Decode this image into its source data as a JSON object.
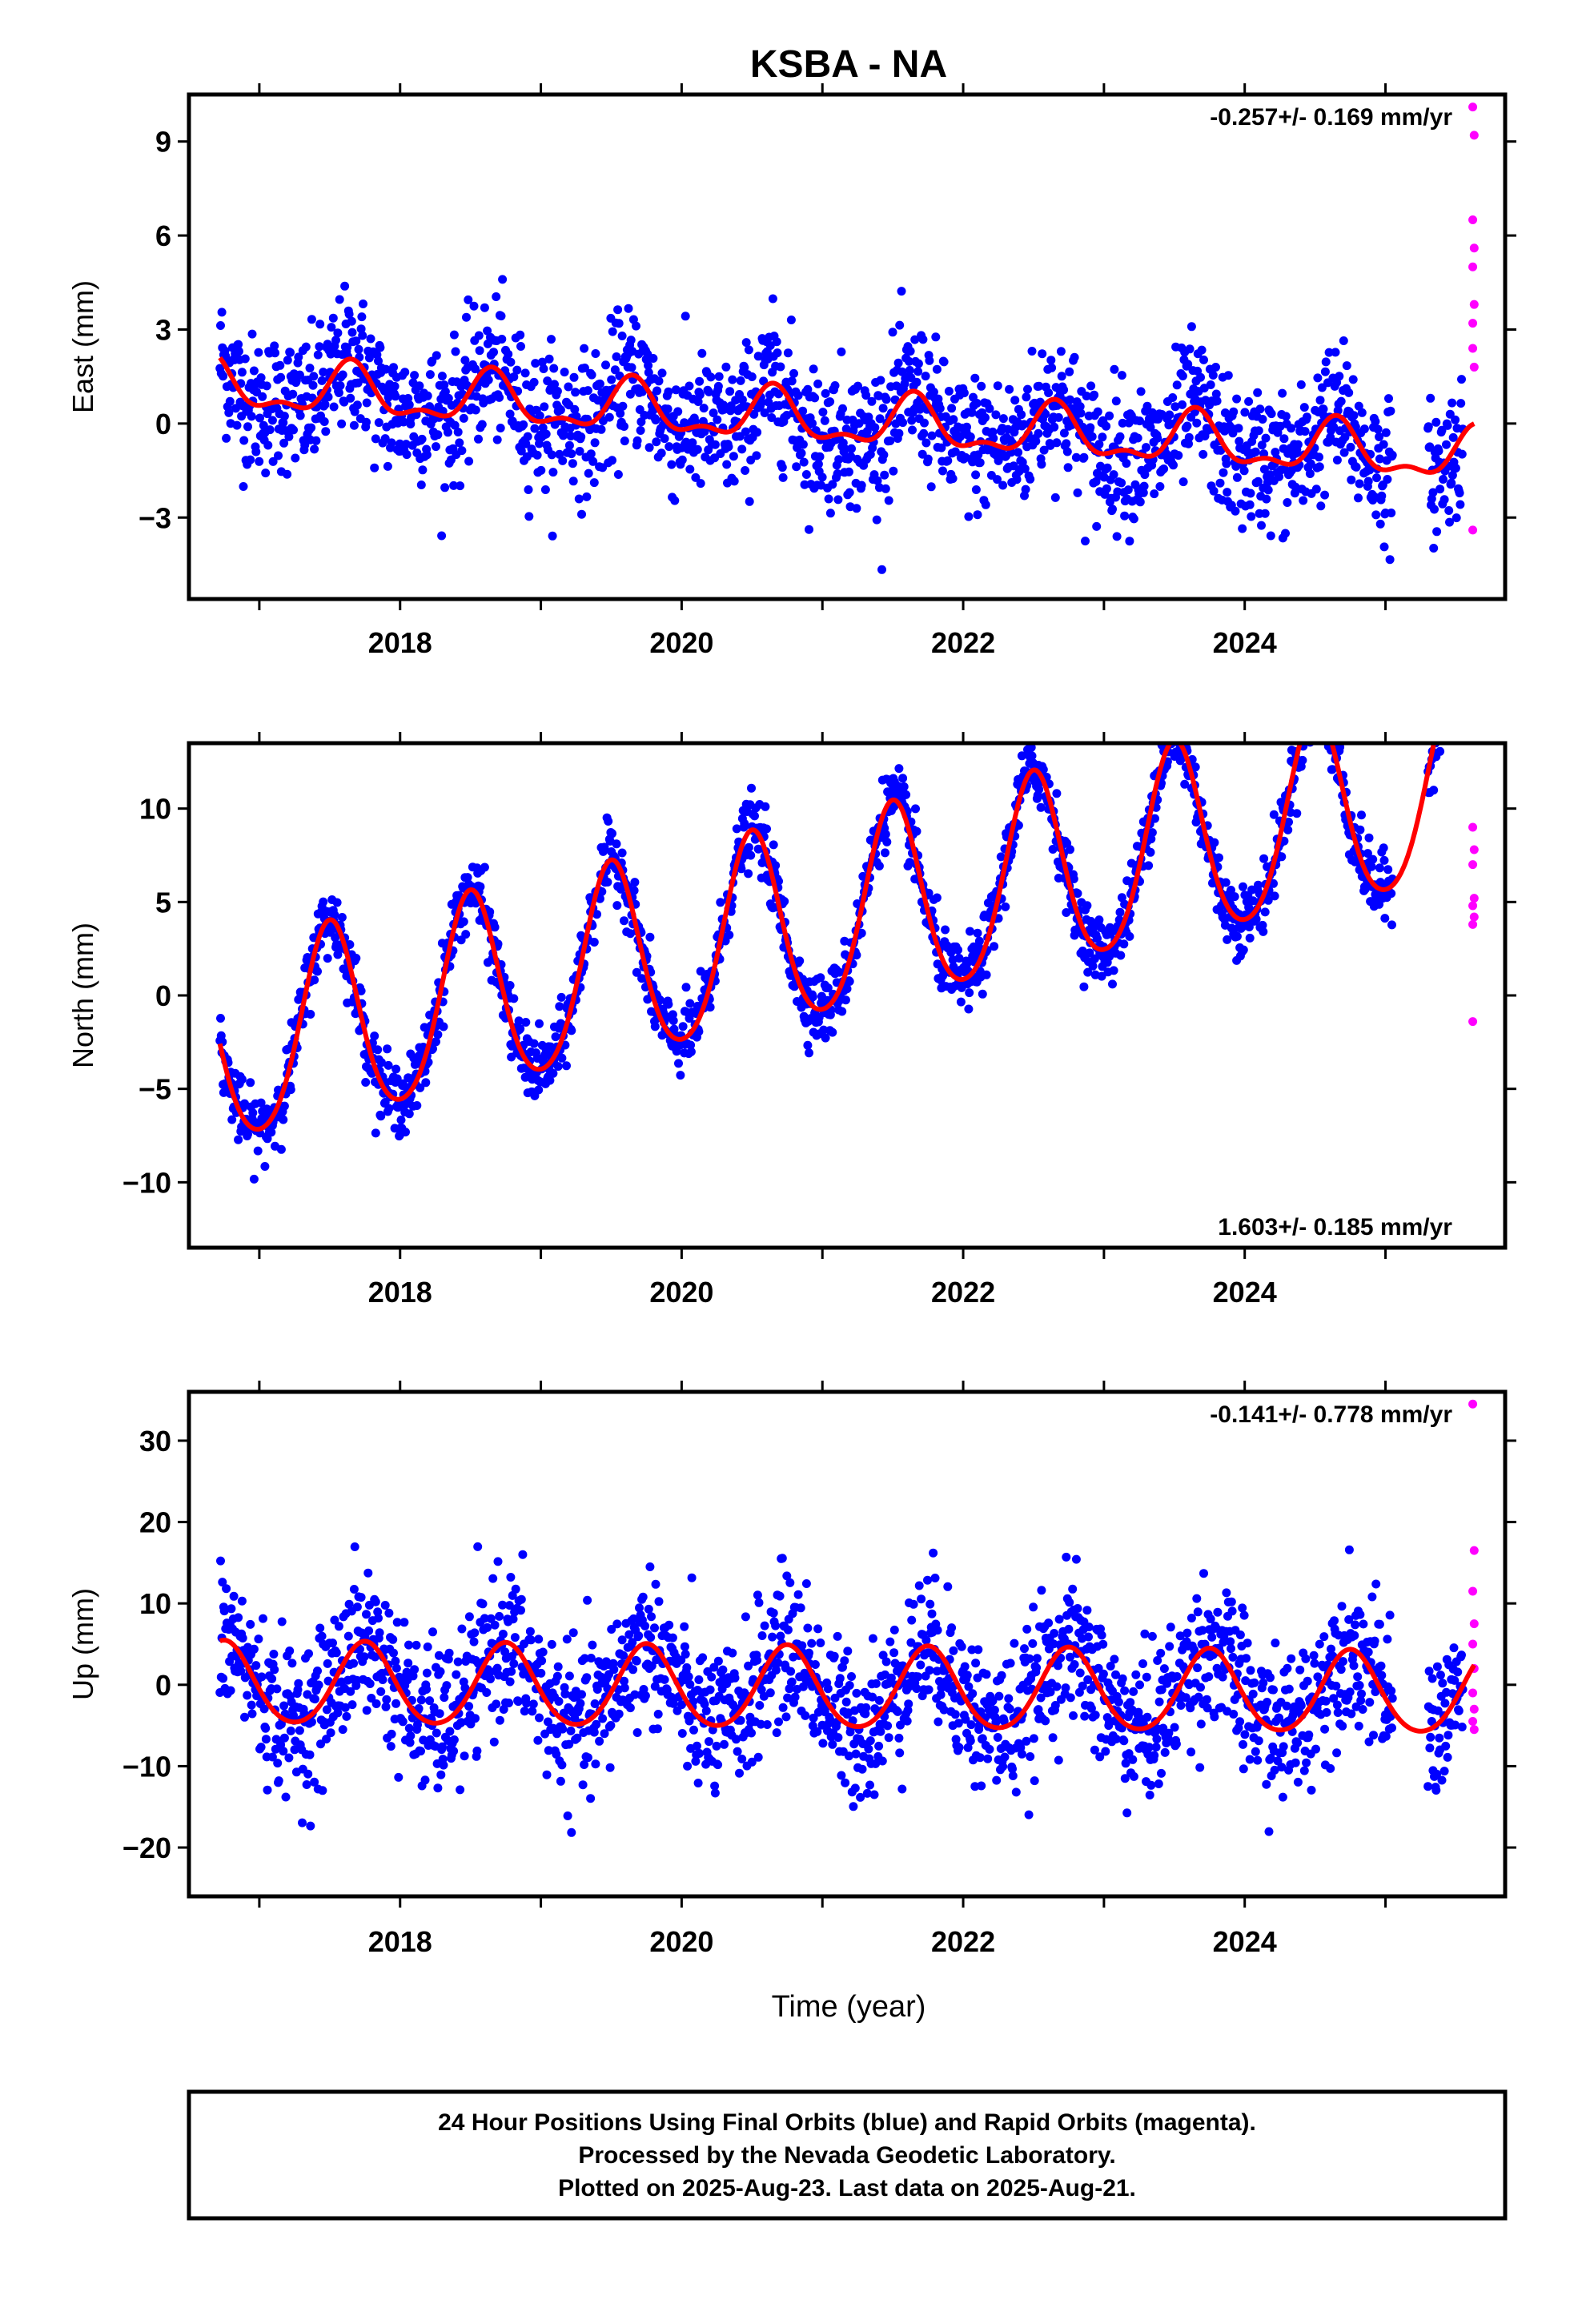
{
  "title": "KSBA - NA",
  "x_axis_label": "Time (year)",
  "footer": {
    "line1": "24 Hour Positions Using Final Orbits (blue) and Rapid Orbits (magenta).",
    "line2": "Processed by the Nevada Geodetic Laboratory.",
    "line3": "Plotted on 2025-Aug-23. Last data on 2025-Aug-21."
  },
  "colors": {
    "final": "#0000ff",
    "rapid": "#ff00ff",
    "fit": "#ff0000",
    "frame": "#000000"
  },
  "chart_data": [
    {
      "type": "scatter",
      "name": "east",
      "ylabel": "East (mm)",
      "rate_label": "-0.257+/- 0.169 mm/yr",
      "rate_position": "top-right",
      "xlim": [
        2016.5,
        2025.85
      ],
      "ylim": [
        -5.6,
        10.5
      ],
      "yticks": [
        -3,
        0,
        3,
        6,
        9
      ],
      "ytick_labels": [
        "−3",
        "0",
        "3",
        "6",
        "9"
      ],
      "xticks": [
        2018,
        2020,
        2022,
        2024
      ],
      "x_range_data": [
        2016.72,
        2025.55
      ],
      "fit": {
        "offset": 1.2,
        "rate": -0.257,
        "annual_amp": 0.75,
        "semiannual_amp": 0.35,
        "phase_year_frac": 0.65,
        "t0": 2016.72
      },
      "scatter_noise_mm": 1.1,
      "rapid_points": [
        {
          "x": 2025.62,
          "y": 10.1
        },
        {
          "x": 2025.63,
          "y": 9.2
        },
        {
          "x": 2025.62,
          "y": 6.5
        },
        {
          "x": 2025.63,
          "y": 5.6
        },
        {
          "x": 2025.62,
          "y": 5.0
        },
        {
          "x": 2025.63,
          "y": 3.8
        },
        {
          "x": 2025.62,
          "y": 2.4
        },
        {
          "x": 2025.63,
          "y": 1.8
        },
        {
          "x": 2025.62,
          "y": 3.2
        },
        {
          "x": 2025.62,
          "y": -3.4
        }
      ]
    },
    {
      "type": "scatter",
      "name": "north",
      "ylabel": "North (mm)",
      "rate_label": "1.603+/- 0.185 mm/yr",
      "rate_position": "bottom-right",
      "xlim": [
        2016.5,
        2025.85
      ],
      "ylim": [
        -13.5,
        13.5
      ],
      "yticks": [
        -10,
        -5,
        0,
        5,
        10
      ],
      "ytick_labels": [
        "−10",
        "−5",
        "0",
        "5",
        "10"
      ],
      "xticks": [
        2018,
        2020,
        2022,
        2024
      ],
      "x_range_data": [
        2016.72,
        2025.55
      ],
      "fit": {
        "offset": -3.0,
        "rate": 1.603,
        "annual_amp": 5.2,
        "semiannual_amp": 0.6,
        "phase_year_frac": 0.5,
        "t0": 2016.72
      },
      "scatter_noise_mm": 0.9,
      "rapid_points": [
        {
          "x": 2025.62,
          "y": 9.0
        },
        {
          "x": 2025.63,
          "y": 7.8
        },
        {
          "x": 2025.62,
          "y": 7.0
        },
        {
          "x": 2025.63,
          "y": 5.2
        },
        {
          "x": 2025.62,
          "y": 4.8
        },
        {
          "x": 2025.63,
          "y": 4.2
        },
        {
          "x": 2025.62,
          "y": 3.8
        },
        {
          "x": 2025.62,
          "y": -1.4
        }
      ]
    },
    {
      "type": "scatter",
      "name": "up",
      "ylabel": "Up (mm)",
      "rate_label": "-0.141+/- 0.778 mm/yr",
      "rate_position": "top-right",
      "xlim": [
        2016.5,
        2025.85
      ],
      "ylim": [
        -26,
        36
      ],
      "yticks": [
        -20,
        -10,
        0,
        10,
        20,
        30
      ],
      "ytick_labels": [
        "−20",
        "−10",
        "0",
        "10",
        "20",
        "30"
      ],
      "xticks": [
        2018,
        2020,
        2022,
        2024
      ],
      "x_range_data": [
        2016.72,
        2025.55
      ],
      "fit": {
        "offset": 0.0,
        "rate": -0.141,
        "annual_amp": 5.0,
        "semiannual_amp": 0.5,
        "phase_year_frac": 0.75,
        "t0": 2016.72
      },
      "scatter_noise_mm": 4.5,
      "rapid_points": [
        {
          "x": 2025.62,
          "y": 34.5
        },
        {
          "x": 2025.63,
          "y": 16.5
        },
        {
          "x": 2025.62,
          "y": 11.5
        },
        {
          "x": 2025.63,
          "y": 7.5
        },
        {
          "x": 2025.62,
          "y": 5.0
        },
        {
          "x": 2025.63,
          "y": 2.0
        },
        {
          "x": 2025.62,
          "y": -1.0
        },
        {
          "x": 2025.63,
          "y": -3.0
        },
        {
          "x": 2025.62,
          "y": -4.5
        },
        {
          "x": 2025.63,
          "y": -5.5
        }
      ]
    }
  ]
}
